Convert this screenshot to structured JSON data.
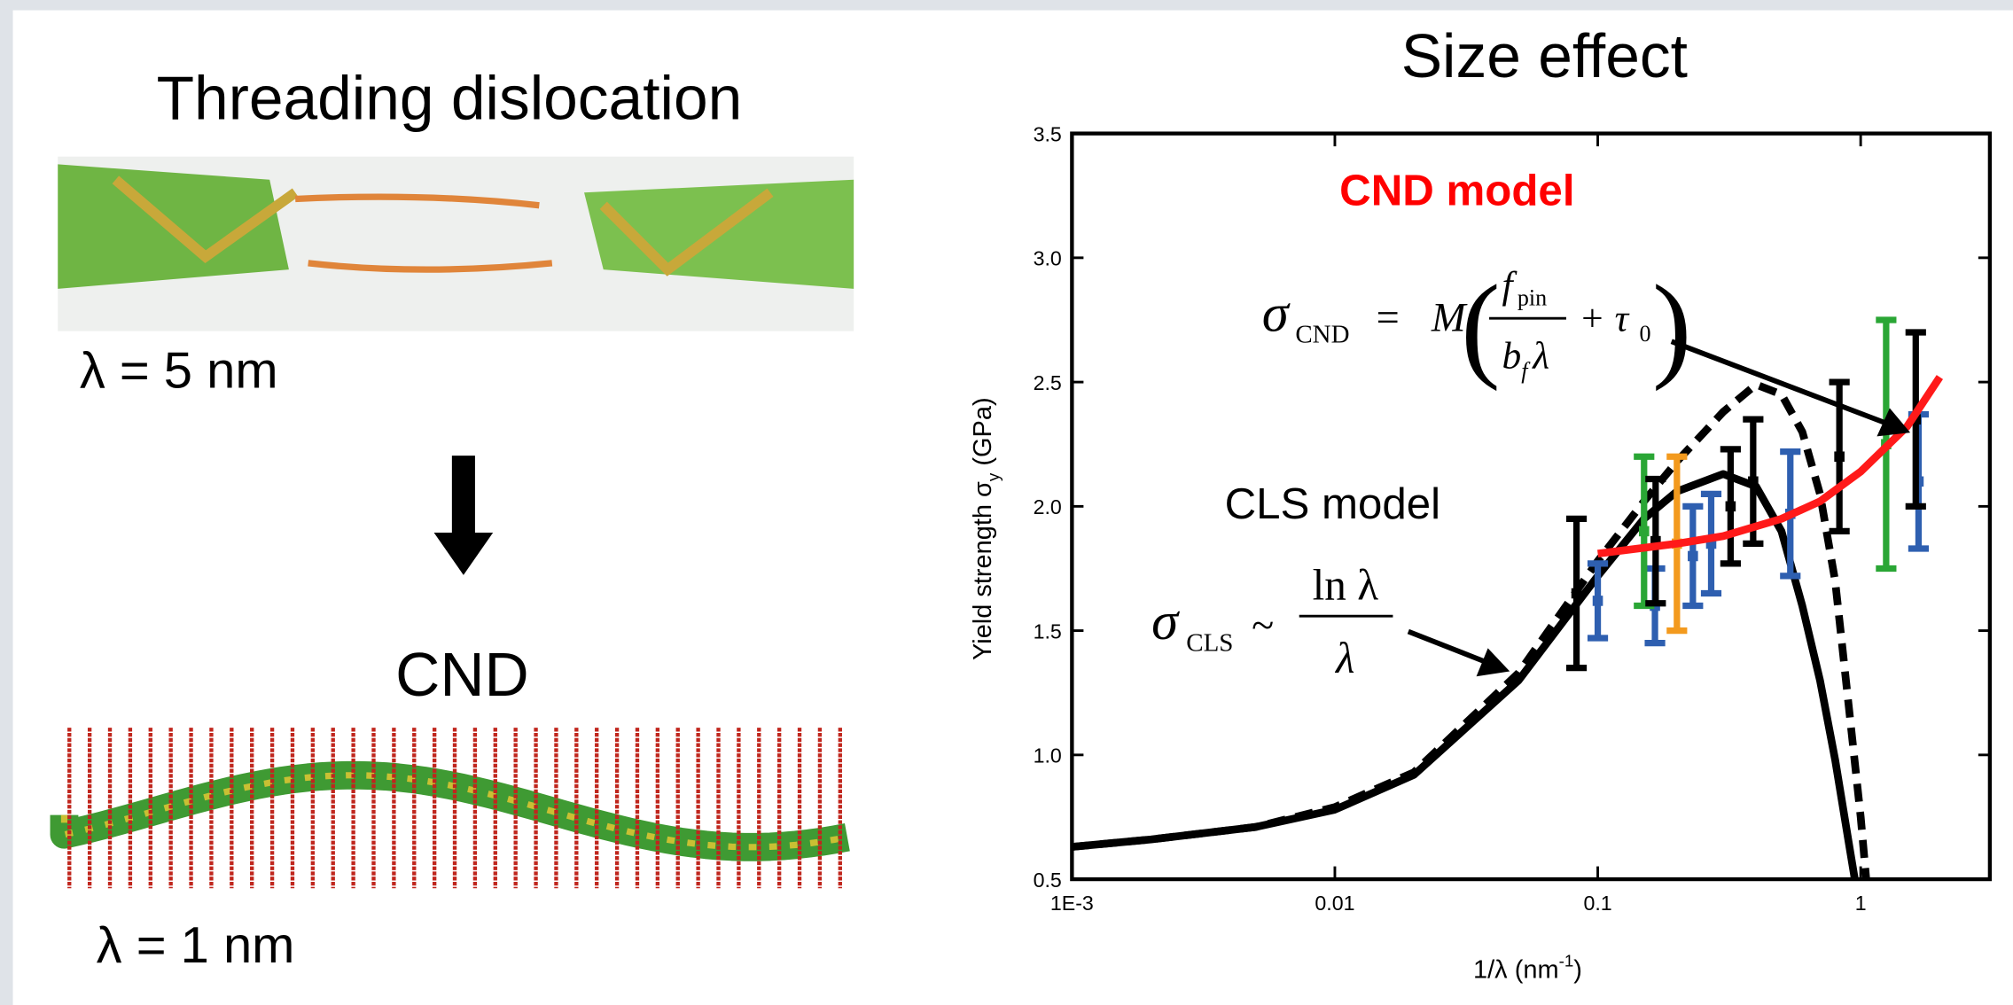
{
  "slide": {
    "left_title": "Threading dislocation",
    "lambda_top": "λ = 5 nm",
    "cnd_title": "CND",
    "lambda_bottom": "λ = 1 nm"
  },
  "chart_data": {
    "type": "line",
    "title": "Size effect",
    "xlabel": {
      "text": "1/λ (nm",
      "sup": "-1",
      "end": ")"
    },
    "ylabel": {
      "text": "Yield strength σ",
      "sub": "y",
      "end": " (GPa)"
    },
    "xscale": "log",
    "xlim": [
      0.001,
      3.1
    ],
    "ylim": [
      0.5,
      3.5
    ],
    "xticks": [
      {
        "value": 0.001,
        "label": "1E-3"
      },
      0.01,
      0.1,
      1
    ],
    "yticks": [
      0.5,
      {
        "value": 1,
        "label": "1.0"
      },
      1.5,
      {
        "value": 2,
        "label": "2.0"
      },
      2.5,
      {
        "value": 3,
        "label": "3.0"
      },
      3.5
    ],
    "series": [
      {
        "kind": "line",
        "color": "#000000",
        "dash": false,
        "x": [
          0.001,
          0.002,
          0.005,
          0.01,
          0.02,
          0.05,
          0.1,
          0.15,
          0.2,
          0.3,
          0.4,
          0.5,
          0.6,
          0.7,
          0.8,
          0.9,
          0.95
        ],
        "values": [
          0.63,
          0.66,
          0.71,
          0.78,
          0.92,
          1.3,
          1.72,
          1.95,
          2.06,
          2.13,
          2.08,
          1.9,
          1.6,
          1.3,
          0.98,
          0.65,
          0.5
        ]
      },
      {
        "kind": "line",
        "color": "#000000",
        "dash": true,
        "x": [
          0.001,
          0.002,
          0.005,
          0.01,
          0.02,
          0.05,
          0.1,
          0.15,
          0.2,
          0.3,
          0.4,
          0.5,
          0.6,
          0.7,
          0.8,
          0.9,
          1.0,
          1.05
        ],
        "values": [
          0.63,
          0.66,
          0.71,
          0.79,
          0.93,
          1.33,
          1.78,
          2.02,
          2.18,
          2.38,
          2.49,
          2.45,
          2.3,
          2.05,
          1.7,
          1.2,
          0.75,
          0.5
        ]
      },
      {
        "kind": "errorbar",
        "color": "#2e5fb0",
        "x": [
          0.1,
          0.165,
          0.23,
          0.27,
          0.54,
          1.66
        ],
        "values": [
          1.62,
          1.6,
          1.8,
          1.85,
          1.97,
          2.1
        ],
        "errors": [
          0.15,
          0.15,
          0.2,
          0.2,
          0.25,
          0.27
        ]
      },
      {
        "kind": "errorbar",
        "color": "#f39a1e",
        "x": [
          0.2
        ],
        "values": [
          1.85
        ],
        "errors": [
          0.35
        ]
      },
      {
        "kind": "errorbar",
        "color": "#2aa635",
        "x": [
          0.15,
          1.25
        ],
        "values": [
          1.9,
          2.25
        ],
        "errors": [
          0.3,
          0.5
        ]
      },
      {
        "kind": "errorbar",
        "color": "#000000",
        "x": [
          0.083,
          0.166,
          0.32,
          0.39,
          0.83,
          1.62
        ],
        "values": [
          1.65,
          1.86,
          2.0,
          2.1,
          2.2,
          2.35
        ],
        "errors": [
          0.3,
          0.25,
          0.23,
          0.25,
          0.3,
          0.35
        ]
      },
      {
        "kind": "line",
        "color": "#ff1a1a",
        "dash": false,
        "x": [
          0.1,
          0.2,
          0.3,
          0.5,
          0.7,
          1.0,
          1.5,
          2.0
        ],
        "values": [
          1.81,
          1.85,
          1.88,
          1.95,
          2.02,
          2.14,
          2.32,
          2.52
        ]
      }
    ],
    "annotations": [
      {
        "text": "CND model",
        "color": "#ff0000"
      },
      {
        "text": "CLS model",
        "color": "#000000"
      }
    ],
    "cnd_formula": {
      "symbol": "σ",
      "subscript": "CND",
      "eq": "=",
      "factor": "M",
      "open": "(",
      "num": "f",
      "num_sub": "pin",
      "den": "b",
      "den_sub": "f",
      "den_tail": "λ",
      "plus": "+ τ",
      "plus_sub": "0",
      "close": ")"
    },
    "cls_formula": {
      "symbol": "σ",
      "subscript": "CLS",
      "rel": "~",
      "num": "ln λ",
      "den": "λ"
    }
  }
}
